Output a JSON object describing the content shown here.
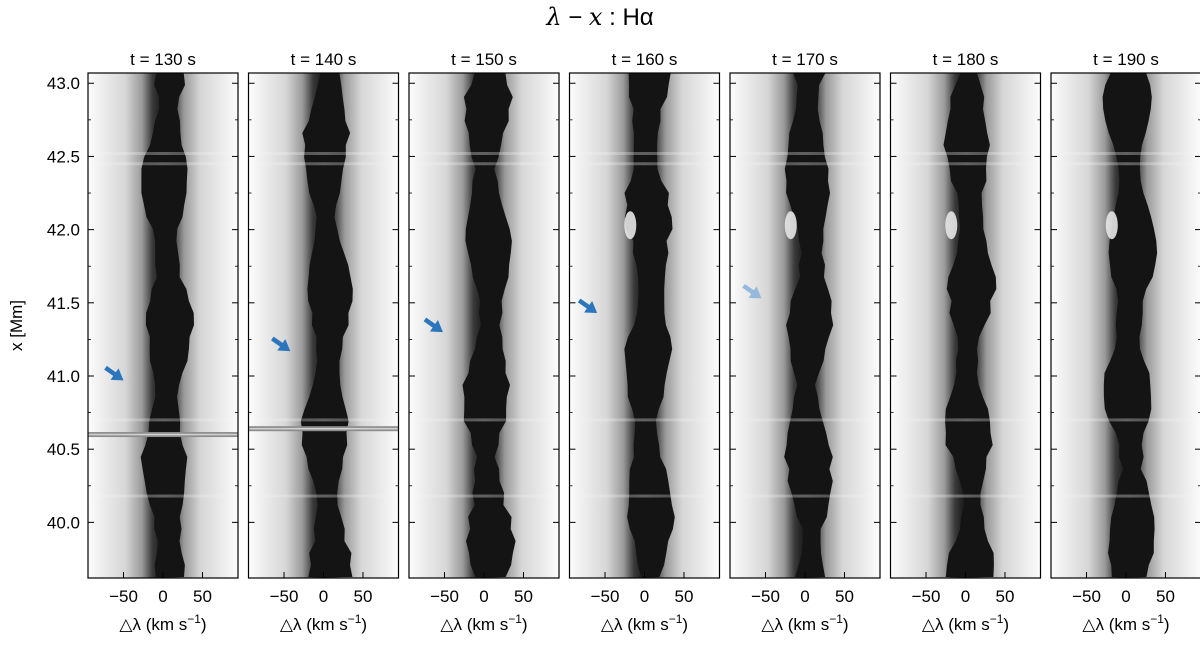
{
  "figure_title": {
    "lhs_symbol": "λ",
    "operator": "−",
    "rhs_symbol": "x",
    "separator": ":",
    "line": "Hα"
  },
  "chart_data": {
    "type": "heatmap",
    "layout": "small-multiples",
    "colormap": "gray",
    "panels": [
      {
        "title": "t = 130 s",
        "arrow": {
          "x": -50,
          "y": 40.97,
          "color": "#2a75bc"
        },
        "horizontal_line_y": 40.6
      },
      {
        "title": "t = 140 s",
        "arrow": {
          "x": -42,
          "y": 41.17,
          "color": "#2a75bc"
        },
        "horizontal_line_y": 40.64
      },
      {
        "title": "t = 150 s",
        "arrow": {
          "x": -52,
          "y": 41.3,
          "color": "#2a75bc"
        },
        "horizontal_line_y": null
      },
      {
        "title": "t = 160 s",
        "arrow": {
          "x": -60,
          "y": 41.43,
          "color": "#2a75bc"
        },
        "horizontal_line_y": null
      },
      {
        "title": "t = 170 s",
        "arrow": {
          "x": -55,
          "y": 41.53,
          "color": "#94b9dc"
        },
        "horizontal_line_y": null
      },
      {
        "title": "t = 180 s",
        "arrow": null,
        "horizontal_line_y": null
      },
      {
        "title": "t = 190 s",
        "arrow": null,
        "horizontal_line_y": null
      }
    ],
    "xlabel": {
      "symbol": "△λ",
      "unit_text": "(km s",
      "exponent": "−1",
      "close": ")"
    },
    "ylabel": "x [Mm]",
    "xlim": [
      -95,
      95
    ],
    "ylim": [
      43.07,
      39.62
    ],
    "y_inverted": true,
    "xticks": [
      -50,
      0,
      50
    ],
    "xtick_labels": [
      "−50",
      "0",
      "50"
    ],
    "yticks": [
      40.0,
      40.5,
      41.0,
      41.5,
      42.0,
      42.5,
      43.0
    ],
    "ytick_labels": [
      "40.0",
      "40.5",
      "41.0",
      "41.5",
      "42.0",
      "42.5",
      "43.0"
    ],
    "y_minor_ticks": [
      40.25,
      40.75,
      41.25,
      41.75,
      42.25,
      42.75
    ],
    "grid": false
  }
}
